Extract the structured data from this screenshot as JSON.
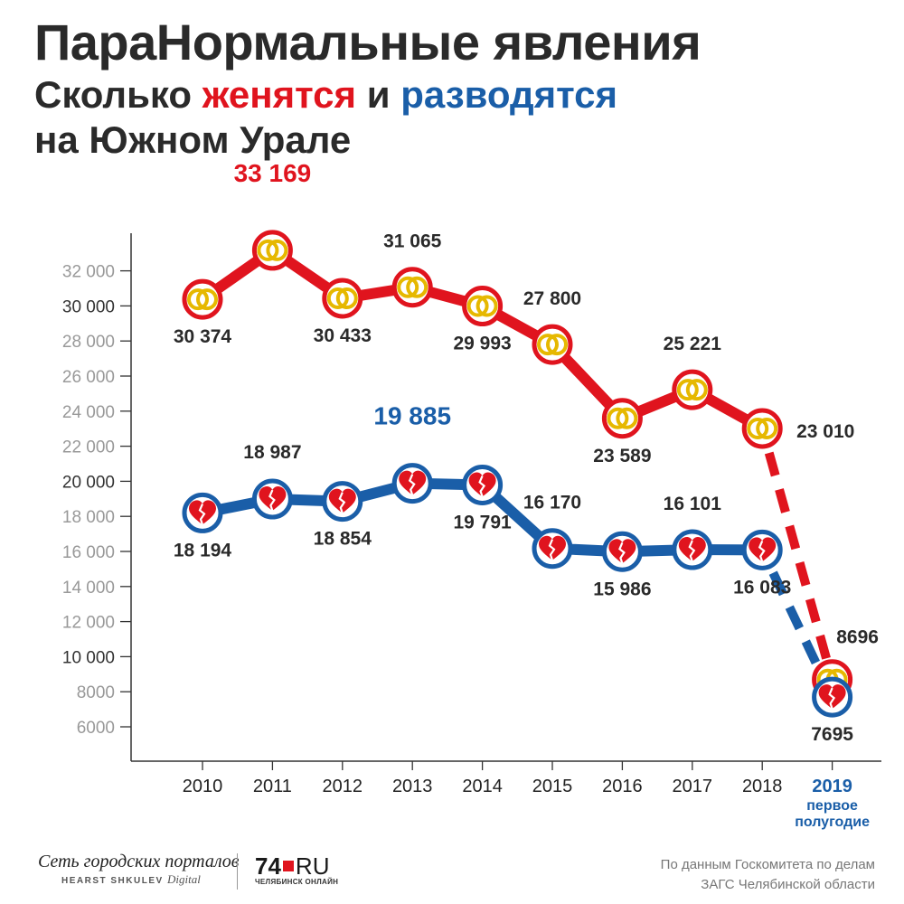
{
  "title": "ПараНормальные явления",
  "subtitle": {
    "part1": "Сколько ",
    "red_word": "женятся",
    "part2": " и ",
    "blue_word": "разводятся",
    "line2": "на Южном Урале"
  },
  "colors": {
    "marriages": "#e0141e",
    "divorces": "#1a5ea8",
    "ring_icon": "#e6b800"
  },
  "chart_data": {
    "type": "line",
    "x": [
      "2010",
      "2011",
      "2012",
      "2013",
      "2014",
      "2015",
      "2016",
      "2017",
      "2018",
      "2019"
    ],
    "x_note": [
      "первое",
      "полугодие"
    ],
    "y_ticks": [
      "6000",
      "8000",
      "10 000",
      "12 000",
      "14 000",
      "16 000",
      "18 000",
      "20 000",
      "22 000",
      "24 000",
      "26 000",
      "28 000",
      "30 000",
      "32 000"
    ],
    "ylim": [
      5000,
      33000
    ],
    "grid": false,
    "series": [
      {
        "key": "marriages",
        "icon": "wedding-rings-icon",
        "values": [
          30374,
          33169,
          30433,
          31065,
          29993,
          27800,
          23589,
          25221,
          23010,
          8696
        ],
        "labels": [
          "30 374",
          "33 169",
          "30 433",
          "31 065",
          "29 993",
          "27 800",
          "23 589",
          "25 221",
          "23 010",
          "8696"
        ],
        "highlight_index": 1,
        "last_segment_dashed": true
      },
      {
        "key": "divorces",
        "icon": "broken-heart-icon",
        "values": [
          18194,
          18987,
          18854,
          19885,
          19791,
          16170,
          15986,
          16101,
          16083,
          7695
        ],
        "labels": [
          "18 194",
          "18 987",
          "18 854",
          "19 885",
          "19 791",
          "16 170",
          "15 986",
          "16 101",
          "16 083",
          "7695"
        ],
        "highlight_index": 3,
        "last_segment_dashed": true
      }
    ]
  },
  "footer": {
    "logo1_line1": "Сеть городских порталов",
    "logo1_line2": "HEARST SHKULEV",
    "logo1_line2_suffix": "Digital",
    "logo2_left": "74",
    "logo2_right": "RU",
    "logo2_sub": "ЧЕЛЯБИНСК ОНЛАЙН",
    "source_line1": "По данным Госкомитета по делам",
    "source_line2": "ЗАГС Челябинской области"
  }
}
